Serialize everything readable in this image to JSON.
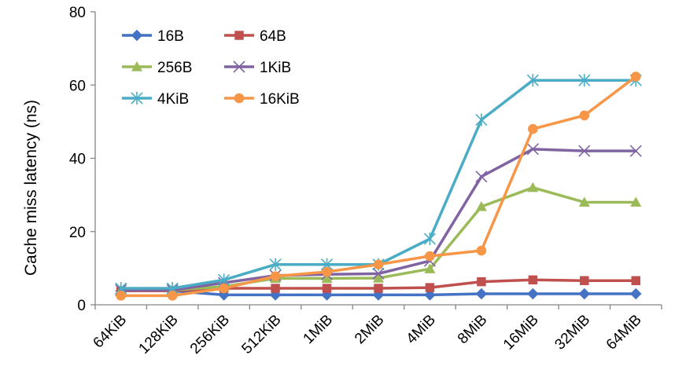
{
  "chart_data": {
    "type": "line",
    "title": "",
    "xlabel": "",
    "ylabel": "Cache miss latency (ns)",
    "ylim": [
      0,
      80
    ],
    "yticks": [
      "0",
      "20",
      "40",
      "60",
      "80"
    ],
    "grid": false,
    "legend_position": "top-left",
    "categories": [
      "64KiB",
      "128KiB",
      "256KiB",
      "512KiB",
      "1MiB",
      "2MiB",
      "4MiB",
      "8MiB",
      "16MiB",
      "32MiB",
      "64MiB"
    ],
    "series": [
      {
        "name": "16B",
        "color": "#4472C4",
        "marker": "diamond",
        "values": [
          3.8,
          3.8,
          2.7,
          2.7,
          2.7,
          2.7,
          2.7,
          3.0,
          3.0,
          3.0,
          3.0
        ]
      },
      {
        "name": "64B",
        "color": "#C0504D",
        "marker": "square",
        "values": [
          3.8,
          3.8,
          4.5,
          4.5,
          4.5,
          4.5,
          4.7,
          6.3,
          6.8,
          6.6,
          6.6
        ]
      },
      {
        "name": "256B",
        "color": "#9BBB59",
        "marker": "triangle",
        "values": [
          4.0,
          4.0,
          5.0,
          7.2,
          7.2,
          7.3,
          9.8,
          26.8,
          32.0,
          28.0,
          28.0
        ]
      },
      {
        "name": "1KiB",
        "color": "#8064A2",
        "marker": "x",
        "values": [
          4.0,
          4.0,
          6.0,
          8.0,
          8.3,
          8.5,
          12.0,
          35.0,
          42.5,
          42.0,
          42.0
        ]
      },
      {
        "name": "4KiB",
        "color": "#4BACC6",
        "marker": "star",
        "values": [
          4.5,
          4.5,
          6.8,
          11.0,
          11.0,
          11.0,
          18.0,
          50.5,
          61.3,
          61.3,
          61.3
        ]
      },
      {
        "name": "16KiB",
        "color": "#F79646",
        "marker": "circle",
        "values": [
          2.5,
          2.5,
          4.5,
          7.8,
          9.0,
          11.0,
          13.3,
          14.8,
          48.0,
          51.7,
          62.3
        ]
      }
    ]
  }
}
